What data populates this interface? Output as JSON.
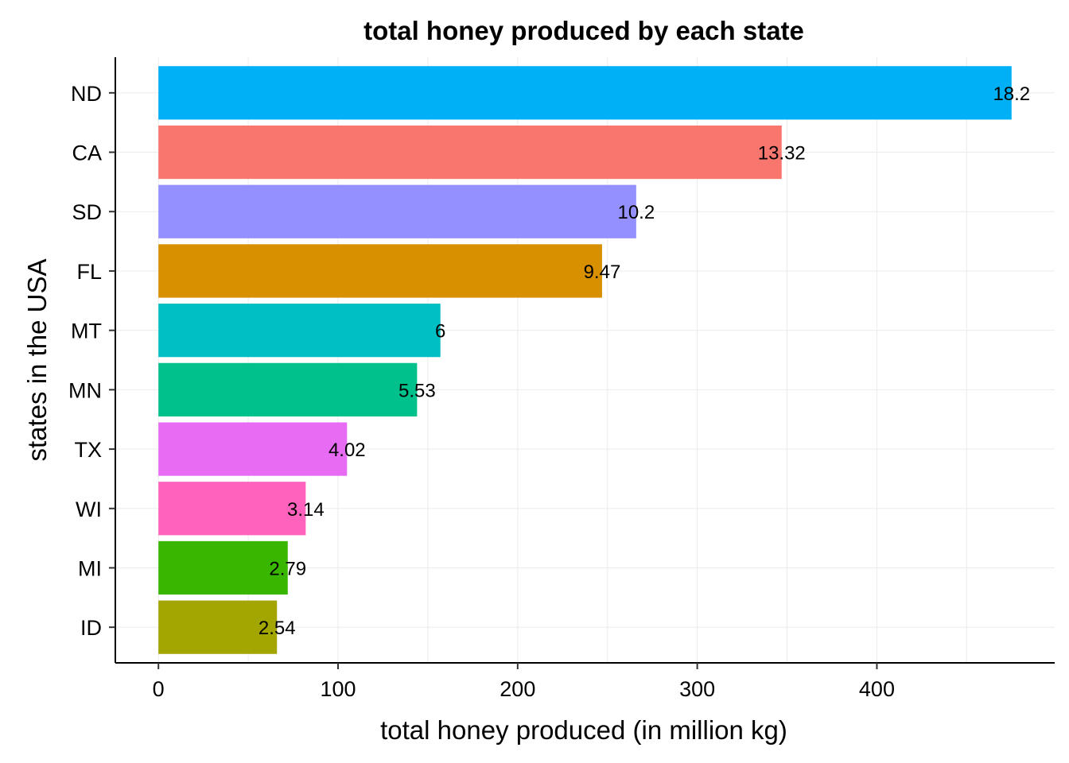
{
  "chart_data": {
    "type": "bar",
    "orientation": "horizontal",
    "title": "total honey produced by each state",
    "xlabel": "total honey produced (in million kg)",
    "ylabel": "states in the USA",
    "categories": [
      "ND",
      "CA",
      "SD",
      "FL",
      "MT",
      "MN",
      "TX",
      "WI",
      "MI",
      "ID"
    ],
    "values": [
      475,
      347,
      266,
      247,
      157,
      144,
      105,
      82,
      72,
      66
    ],
    "data_labels": [
      "18.2",
      "13.32",
      "10.2",
      "9.47",
      "6",
      "5.53",
      "4.02",
      "3.14",
      "2.79",
      "2.54"
    ],
    "colors": [
      "#00B0F6",
      "#F8766D",
      "#9590FF",
      "#D89000",
      "#00BFC4",
      "#00C08B",
      "#E76BF3",
      "#FF62BC",
      "#39B600",
      "#A3A500"
    ],
    "x_ticks": [
      0,
      100,
      200,
      300,
      400
    ],
    "xlim": [
      -24,
      499
    ],
    "grid": true,
    "legend": "none"
  }
}
